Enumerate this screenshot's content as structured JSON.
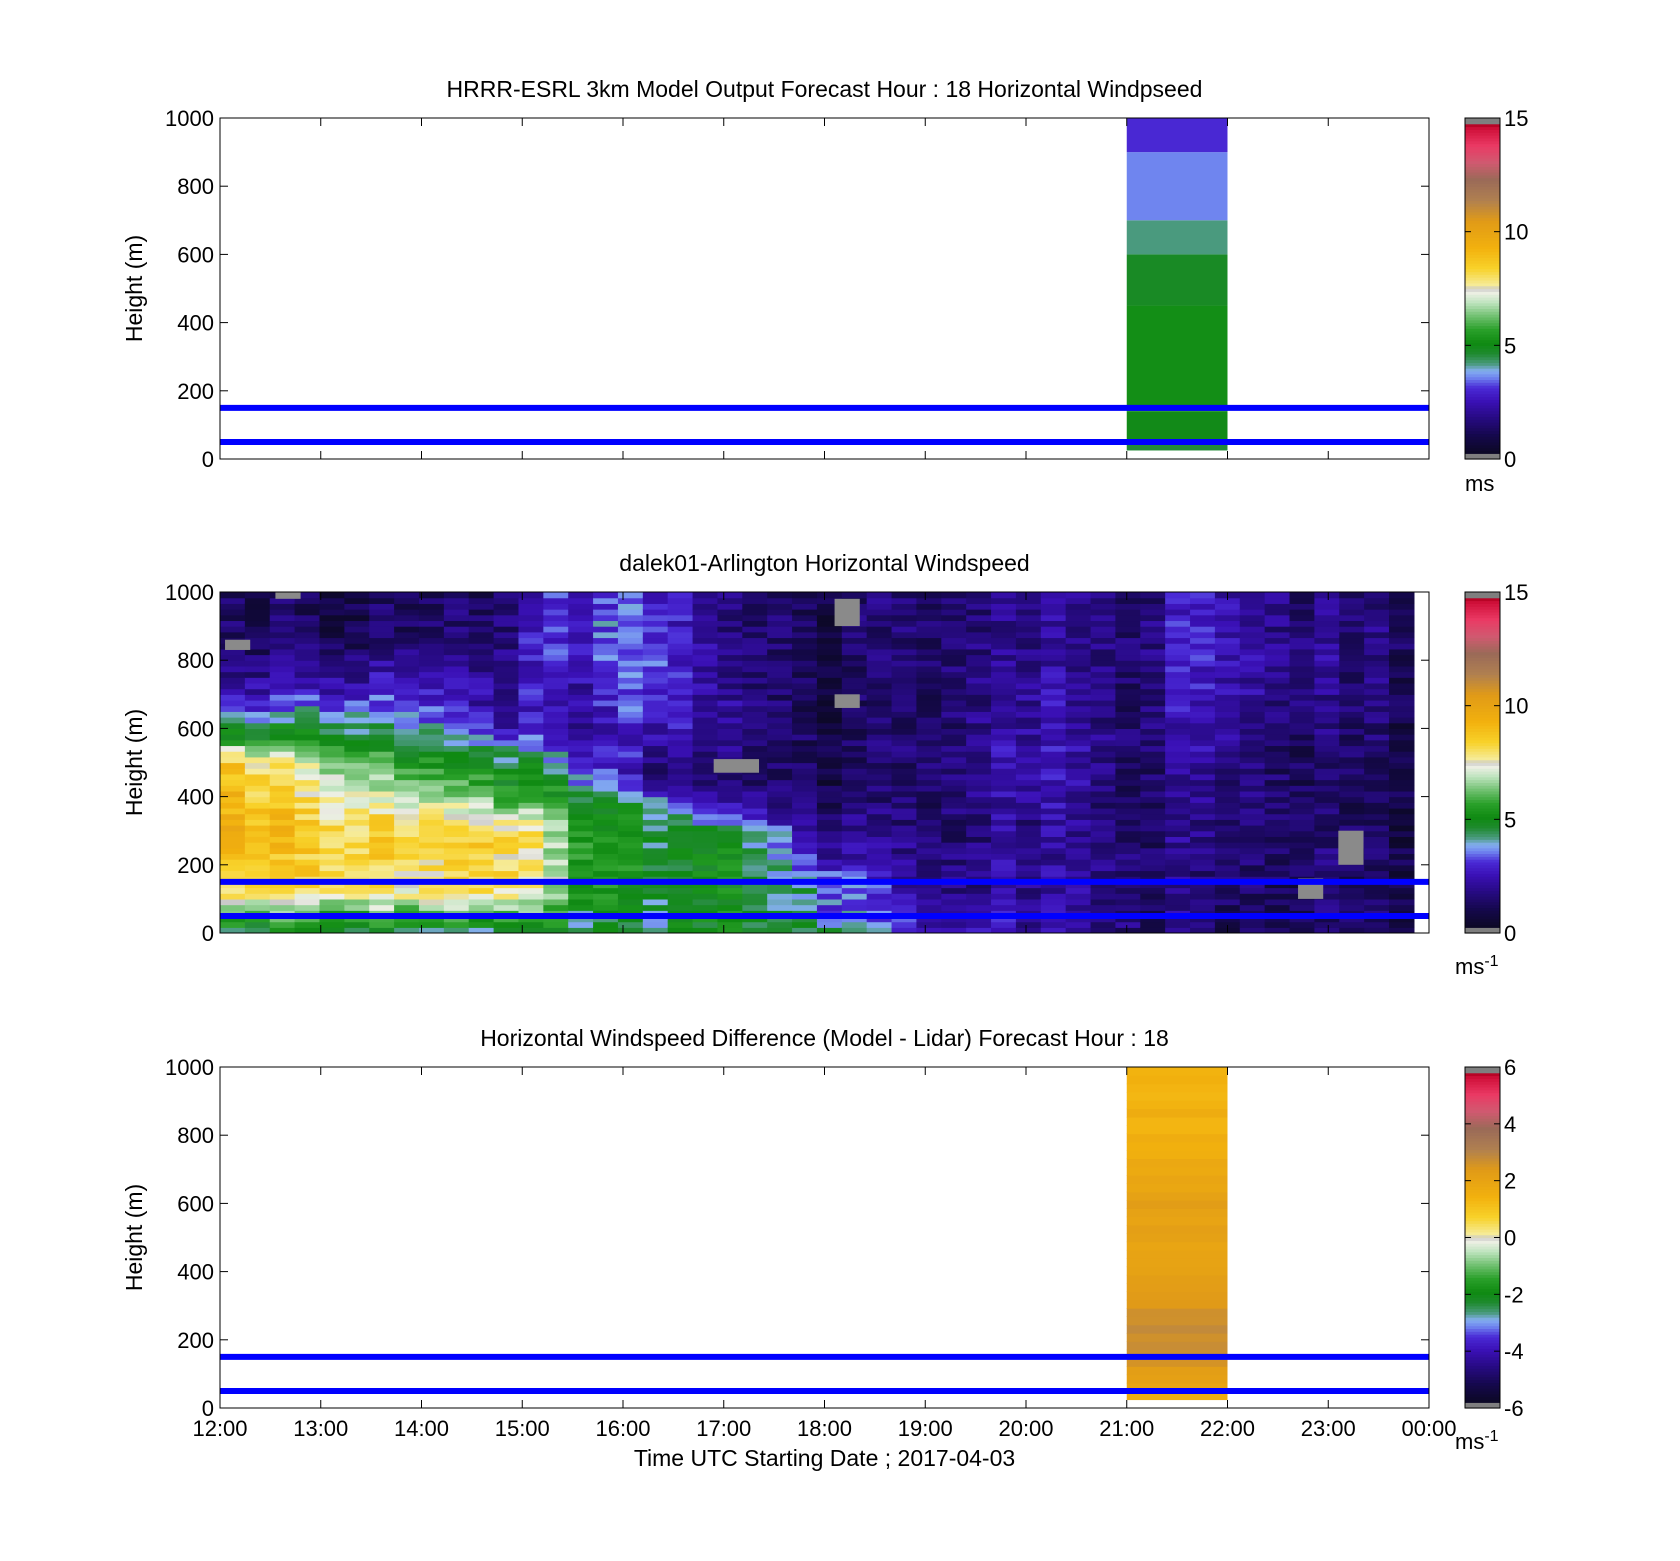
{
  "chart_data": [
    {
      "type": "heatmap",
      "title": "HRRR-ESRL 3km Model Output   Forecast Hour : 18 Horizontal Windpseed",
      "ylabel": "Height (m)",
      "xlabel": "",
      "x_ticks": [
        "12:00",
        "13:00",
        "14:00",
        "15:00",
        "16:00",
        "17:00",
        "18:00",
        "19:00",
        "20:00",
        "21:00",
        "22:00",
        "23:00",
        "00:00"
      ],
      "show_x_tick_labels": false,
      "x_range_hours": [
        12,
        24
      ],
      "ylim": [
        0,
        1000
      ],
      "y_ticks": [
        0,
        200,
        400,
        600,
        800,
        1000
      ],
      "reference_lines_m": [
        50,
        150
      ],
      "colorbar": {
        "min": 0,
        "max": 15,
        "ticks": [
          0,
          5,
          10,
          15
        ],
        "unit": "ms",
        "unit_superscript": ""
      },
      "model_column": {
        "start_hour": 21,
        "end_hour": 22,
        "layers": [
          {
            "bottom": 25,
            "top": 55,
            "value": 4.6
          },
          {
            "bottom": 55,
            "top": 140,
            "value": 5.0
          },
          {
            "bottom": 140,
            "top": 450,
            "value": 5.2
          },
          {
            "bottom": 450,
            "top": 600,
            "value": 4.8
          },
          {
            "bottom": 600,
            "top": 700,
            "value": 4.2
          },
          {
            "bottom": 700,
            "top": 900,
            "value": 3.6
          },
          {
            "bottom": 900,
            "top": 1000,
            "value": 3.1
          }
        ]
      }
    },
    {
      "type": "heatmap",
      "title": "dalek01-Arlington  Horizontal Windspeed",
      "ylabel": "Height (m)",
      "xlabel": "",
      "x_ticks": [
        "12:00",
        "13:00",
        "14:00",
        "15:00",
        "16:00",
        "17:00",
        "18:00",
        "19:00",
        "20:00",
        "21:00",
        "22:00",
        "23:00",
        "00:00"
      ],
      "show_x_tick_labels": false,
      "x_range_hours": [
        12,
        24
      ],
      "ylim": [
        0,
        1000
      ],
      "y_ticks": [
        0,
        200,
        400,
        600,
        800,
        1000
      ],
      "reference_lines_m": [
        50,
        150
      ],
      "colorbar": {
        "min": 0,
        "max": 15,
        "ticks": [
          0,
          5,
          10,
          15
        ],
        "unit": "ms",
        "unit_superscript": "-1"
      },
      "lidar_time_range_hours": [
        12,
        23.85
      ],
      "lidar_columns": 48,
      "lidar_rows": 60,
      "lidar_profiles": [
        {
          "time_hour": 12.0,
          "profile": [
            [
              0,
              4.5
            ],
            [
              100,
              7.5
            ],
            [
              150,
              8.5
            ],
            [
              300,
              9.5
            ],
            [
              500,
              9.0
            ],
            [
              580,
              5.0
            ],
            [
              650,
              3.0
            ],
            [
              800,
              1.5
            ],
            [
              1000,
              1.2
            ]
          ]
        },
        {
          "time_hour": 13.0,
          "profile": [
            [
              0,
              4.5
            ],
            [
              100,
              7.5
            ],
            [
              150,
              8.3
            ],
            [
              300,
              8.6
            ],
            [
              480,
              7.2
            ],
            [
              600,
              5.0
            ],
            [
              700,
              3.0
            ],
            [
              850,
              1.4
            ],
            [
              1000,
              1.2
            ]
          ]
        },
        {
          "time_hour": 14.0,
          "profile": [
            [
              0,
              4.2
            ],
            [
              100,
              7.3
            ],
            [
              150,
              8.0
            ],
            [
              300,
              8.4
            ],
            [
              420,
              6.5
            ],
            [
              560,
              4.8
            ],
            [
              650,
              3.5
            ],
            [
              850,
              1.6
            ],
            [
              1000,
              1.3
            ]
          ]
        },
        {
          "time_hour": 14.75,
          "profile": [
            [
              0,
              4.3
            ],
            [
              100,
              7.6
            ],
            [
              150,
              8.6
            ],
            [
              300,
              8.6
            ],
            [
              400,
              6.0
            ],
            [
              520,
              4.6
            ],
            [
              620,
              2.4
            ],
            [
              850,
              1.8
            ],
            [
              1000,
              1.3
            ]
          ]
        },
        {
          "time_hour": 15.5,
          "profile": [
            [
              0,
              4.5
            ],
            [
              100,
              5.5
            ],
            [
              150,
              6.0
            ],
            [
              300,
              6.0
            ],
            [
              430,
              4.6
            ],
            [
              600,
              2.0
            ],
            [
              750,
              2.8
            ],
            [
              900,
              3.3
            ],
            [
              1000,
              3.0
            ]
          ]
        },
        {
          "time_hour": 16.25,
          "profile": [
            [
              0,
              4.5
            ],
            [
              100,
              4.8
            ],
            [
              150,
              4.8
            ],
            [
              300,
              4.9
            ],
            [
              380,
              4.5
            ],
            [
              460,
              2.0
            ],
            [
              650,
              3.2
            ],
            [
              800,
              3.8
            ],
            [
              1000,
              3.3
            ]
          ]
        },
        {
          "time_hour": 17.0,
          "profile": [
            [
              0,
              4.8
            ],
            [
              100,
              4.9
            ],
            [
              150,
              4.9
            ],
            [
              300,
              4.9
            ],
            [
              330,
              3.0
            ],
            [
              450,
              1.3
            ],
            [
              600,
              2.0
            ],
            [
              800,
              1.5
            ],
            [
              1000,
              1.4
            ]
          ]
        },
        {
          "time_hour": 18.0,
          "profile": [
            [
              0,
              4.6
            ],
            [
              60,
              3.5
            ],
            [
              150,
              3.8
            ],
            [
              230,
              2.2
            ],
            [
              400,
              1.0
            ],
            [
              600,
              0.8
            ],
            [
              800,
              0.9
            ],
            [
              1000,
              1.0
            ]
          ]
        },
        {
          "time_hour": 19.0,
          "profile": [
            [
              0,
              3.0
            ],
            [
              60,
              2.5
            ],
            [
              150,
              1.8
            ],
            [
              400,
              1.6
            ],
            [
              700,
              1.5
            ],
            [
              1000,
              1.6
            ]
          ]
        },
        {
          "time_hour": 20.25,
          "profile": [
            [
              0,
              2.2
            ],
            [
              100,
              2.0
            ],
            [
              300,
              1.9
            ],
            [
              500,
              2.6
            ],
            [
              700,
              2.3
            ],
            [
              900,
              1.9
            ],
            [
              1000,
              1.8
            ]
          ]
        },
        {
          "time_hour": 21.0,
          "profile": [
            [
              0,
              2.0
            ],
            [
              150,
              2.0
            ],
            [
              400,
              1.6
            ],
            [
              700,
              1.8
            ],
            [
              1000,
              1.8
            ]
          ]
        },
        {
          "time_hour": 21.75,
          "profile": [
            [
              0,
              1.4
            ],
            [
              150,
              1.6
            ],
            [
              400,
              1.9
            ],
            [
              600,
              2.4
            ],
            [
              800,
              2.8
            ],
            [
              1000,
              2.6
            ]
          ]
        },
        {
          "time_hour": 22.75,
          "profile": [
            [
              0,
              1.3
            ],
            [
              200,
              1.4
            ],
            [
              500,
              1.5
            ],
            [
              800,
              2.0
            ],
            [
              1000,
              1.8
            ]
          ]
        },
        {
          "time_hour": 23.85,
          "profile": [
            [
              0,
              0.8
            ],
            [
              200,
              1.0
            ],
            [
              500,
              0.8
            ],
            [
              800,
              1.2
            ],
            [
              1000,
              1.2
            ]
          ]
        }
      ],
      "missing_data_blocks": [
        {
          "t0": 18.1,
          "t1": 18.35,
          "h0": 900,
          "h1": 980
        },
        {
          "t0": 18.1,
          "t1": 18.35,
          "h0": 660,
          "h1": 700
        },
        {
          "t0": 16.9,
          "t1": 17.35,
          "h0": 470,
          "h1": 510
        },
        {
          "t0": 23.1,
          "t1": 23.35,
          "h0": 200,
          "h1": 300
        },
        {
          "t0": 22.7,
          "t1": 22.95,
          "h0": 100,
          "h1": 160
        },
        {
          "t0": 12.55,
          "t1": 12.8,
          "h0": 980,
          "h1": 1000
        },
        {
          "t0": 12.05,
          "t1": 12.3,
          "h0": 830,
          "h1": 860
        }
      ]
    },
    {
      "type": "heatmap",
      "title": "Horizontal Windspeed Difference (Model - Lidar) Forecast Hour : 18",
      "ylabel": "Height (m)",
      "xlabel": "Time UTC  Starting Date ; 2017-04-03",
      "x_ticks": [
        "12:00",
        "13:00",
        "14:00",
        "15:00",
        "16:00",
        "17:00",
        "18:00",
        "19:00",
        "20:00",
        "21:00",
        "22:00",
        "23:00",
        "00:00"
      ],
      "show_x_tick_labels": true,
      "x_range_hours": [
        12,
        24
      ],
      "ylim": [
        0,
        1000
      ],
      "y_ticks": [
        0,
        200,
        400,
        600,
        800,
        1000
      ],
      "reference_lines_m": [
        50,
        150
      ],
      "colorbar": {
        "min": -6,
        "max": 6,
        "ticks": [
          -6,
          -4,
          -2,
          0,
          2,
          4,
          6
        ],
        "unit": "ms",
        "unit_superscript": "-1"
      },
      "diff_column": {
        "start_hour": 21,
        "end_hour": 22,
        "profile": [
          [
            25,
            1.6
          ],
          [
            100,
            2.2
          ],
          [
            200,
            2.8
          ],
          [
            300,
            2.5
          ],
          [
            450,
            2.0
          ],
          [
            600,
            2.1
          ],
          [
            800,
            1.5
          ],
          [
            1000,
            1.4
          ]
        ]
      }
    }
  ],
  "colors": {
    "reference_line": "#0000ff",
    "missing_data": "#8a8a8a",
    "background": "#ffffff",
    "speed_colormap": [
      [
        0.0,
        "#7f7f7f"
      ],
      [
        0.018,
        "#7f7f7f"
      ],
      [
        0.02,
        "#0c0826"
      ],
      [
        0.07,
        "#15084c"
      ],
      [
        0.12,
        "#260a80"
      ],
      [
        0.17,
        "#3a10b5"
      ],
      [
        0.21,
        "#4a2ad6"
      ],
      [
        0.24,
        "#6f85ef"
      ],
      [
        0.26,
        "#84aff0"
      ],
      [
        0.28,
        "#4a9a7e"
      ],
      [
        0.31,
        "#1e8a2e"
      ],
      [
        0.34,
        "#0f8a12"
      ],
      [
        0.38,
        "#2aa02a"
      ],
      [
        0.42,
        "#70c070"
      ],
      [
        0.46,
        "#bfe4bf"
      ],
      [
        0.49,
        "#f0f0e6"
      ],
      [
        0.5,
        "#c8c8c8"
      ],
      [
        0.51,
        "#f6ec9c"
      ],
      [
        0.56,
        "#f8d22a"
      ],
      [
        0.62,
        "#f2b10e"
      ],
      [
        0.7,
        "#e09a18"
      ],
      [
        0.76,
        "#b08050"
      ],
      [
        0.82,
        "#9a6a58"
      ],
      [
        0.87,
        "#d05a70"
      ],
      [
        0.92,
        "#ea3a64"
      ],
      [
        0.97,
        "#d0103a"
      ],
      [
        0.982,
        "#b00020"
      ],
      [
        0.985,
        "#7f7f7f"
      ],
      [
        1.0,
        "#7f7f7f"
      ]
    ]
  }
}
